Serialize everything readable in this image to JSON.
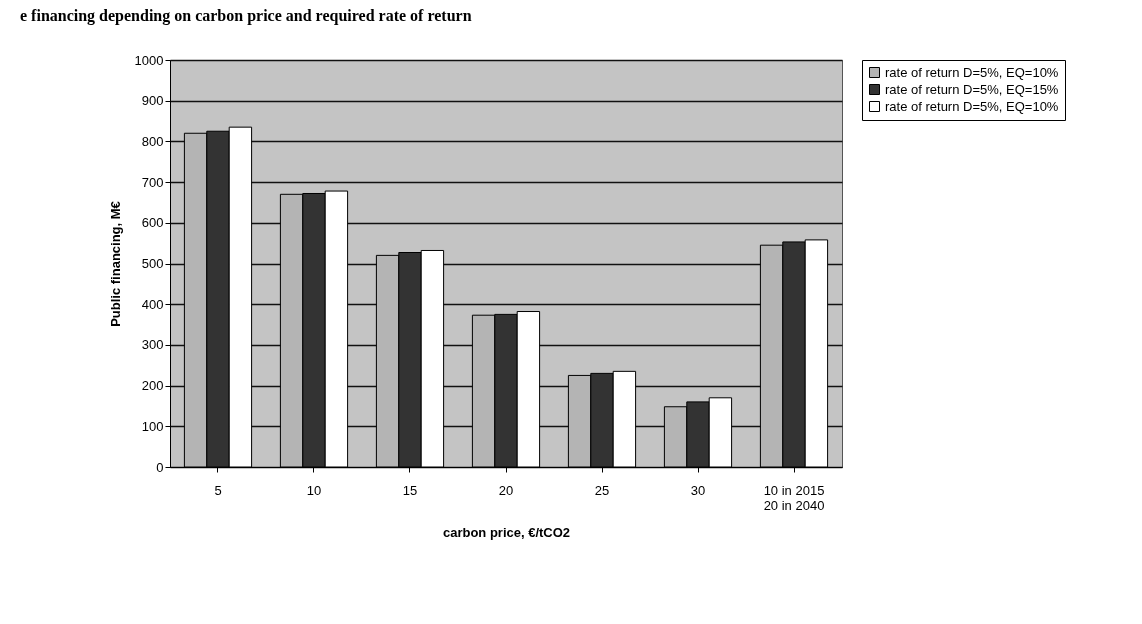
{
  "chart_data": {
    "type": "bar",
    "title": "e financing depending on carbon price and required rate of return",
    "xlabel": "carbon price, €/tCO2",
    "ylabel": "Public financing, M€",
    "categories": [
      "5",
      "10",
      "15",
      "20",
      "25",
      "30",
      "10 in 2015 20 in 2040"
    ],
    "series": [
      {
        "name": "rate of return D=5%, EQ=10%",
        "color": "#b4b4b4",
        "values": [
          820,
          670,
          520,
          373,
          225,
          148,
          545
        ]
      },
      {
        "name": "rate of return D=5%, EQ=15%",
        "color": "#333333",
        "values": [
          825,
          672,
          527,
          375,
          230,
          160,
          553
        ]
      },
      {
        "name": "rate of return D=5%, EQ=10%",
        "color": "#ffffff",
        "values": [
          835,
          678,
          532,
          382,
          235,
          170,
          558
        ]
      }
    ],
    "ylim": [
      0,
      1000
    ],
    "yticks": [
      0,
      100,
      200,
      300,
      400,
      500,
      600,
      700,
      800,
      900,
      1000
    ],
    "grid": "y",
    "legend": "right"
  }
}
